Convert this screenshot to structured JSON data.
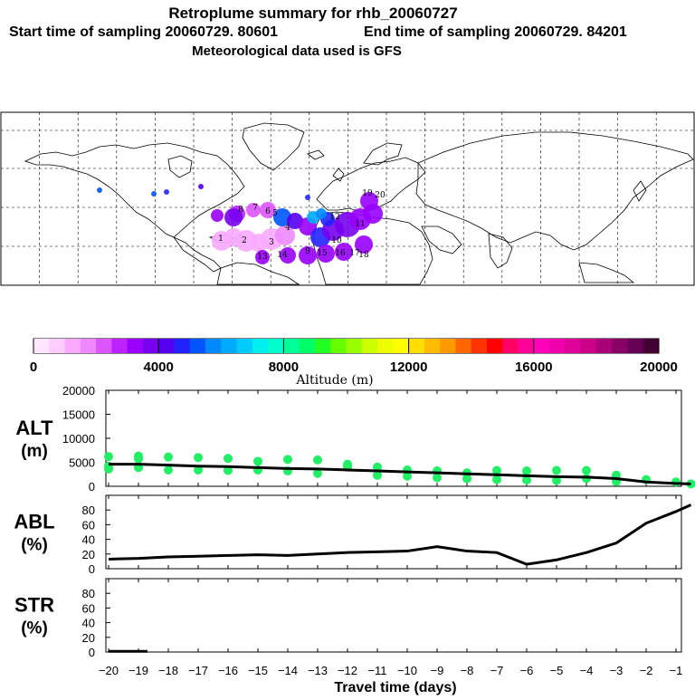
{
  "header": {
    "title": "Retroplume summary for rhb_20060727",
    "start_label": "Start time of sampling 20060729. 80601",
    "end_label": "End time of sampling 20060729. 84201",
    "met_label": "Meteorological data used is GFS"
  },
  "colorbar": {
    "tick_labels": [
      "0",
      "4000",
      "8000",
      "12000",
      "16000",
      "20000"
    ],
    "label": "Altitude (m)",
    "min": 0,
    "max": 20000,
    "colors": [
      "#ffe6ff",
      "#ffccff",
      "#f7aaff",
      "#ee88ff",
      "#dd55ff",
      "#bb22ff",
      "#9900ff",
      "#7700ee",
      "#5500ee",
      "#2222ff",
      "#0055ff",
      "#0088ff",
      "#00aaff",
      "#00ccff",
      "#00eeee",
      "#00ffcc",
      "#00ff99",
      "#00ff66",
      "#22ff22",
      "#66ff00",
      "#99ff00",
      "#ccff00",
      "#eeff00",
      "#ffff00",
      "#ffdd00",
      "#ffbb00",
      "#ff9900",
      "#ff6600",
      "#ff3300",
      "#ff0000",
      "#ff0066",
      "#ff0099",
      "#ff00bb",
      "#ee00aa",
      "#dd0099",
      "#cc0088",
      "#aa0077",
      "#880066",
      "#660055",
      "#440033"
    ]
  },
  "map": {
    "plume_labels": [
      "20",
      "19",
      "18",
      "17",
      "16",
      "15",
      "14",
      "13",
      "12",
      "11",
      "10",
      "9",
      "8",
      "7",
      "6",
      "5",
      "4",
      "3",
      "2",
      "1"
    ]
  },
  "chart_data": [
    {
      "type": "scatter",
      "name": "altitude",
      "title": "ALT (m)",
      "ylabel_top": "ALT",
      "ylabel_bottom": "(m)",
      "ylim": [
        0,
        20000
      ],
      "yticks": [
        0,
        5000,
        10000,
        15000,
        20000
      ],
      "ytick_labels": [
        "0",
        "5000",
        "10000",
        "15000",
        "20000"
      ],
      "line": {
        "x": [
          -20,
          -19,
          -18,
          -17,
          -16,
          -15,
          -14,
          -13,
          -12,
          -11,
          -10,
          -9,
          -8,
          -7,
          -6,
          -5,
          -4,
          -3,
          -2,
          -1,
          -0.5
        ],
        "y": [
          4600,
          4600,
          4400,
          4200,
          4100,
          3900,
          3700,
          3600,
          3400,
          3200,
          3000,
          2800,
          2600,
          2400,
          2200,
          2000,
          1900,
          1600,
          900,
          600,
          500
        ]
      },
      "points": [
        {
          "x": -20,
          "y": 6200
        },
        {
          "x": -20,
          "y": 4200
        },
        {
          "x": -20,
          "y": 3600
        },
        {
          "x": -19,
          "y": 6300
        },
        {
          "x": -19,
          "y": 5700
        },
        {
          "x": -19,
          "y": 3900
        },
        {
          "x": -18,
          "y": 6100
        },
        {
          "x": -18,
          "y": 3400
        },
        {
          "x": -17,
          "y": 6000
        },
        {
          "x": -17,
          "y": 3400
        },
        {
          "x": -16,
          "y": 5800
        },
        {
          "x": -16,
          "y": 3300
        },
        {
          "x": -15,
          "y": 5200
        },
        {
          "x": -15,
          "y": 3400
        },
        {
          "x": -14,
          "y": 5600
        },
        {
          "x": -14,
          "y": 3200
        },
        {
          "x": -13,
          "y": 5500
        },
        {
          "x": -13,
          "y": 2700
        },
        {
          "x": -12,
          "y": 4600
        },
        {
          "x": -12,
          "y": 4000
        },
        {
          "x": -11,
          "y": 4000
        },
        {
          "x": -11,
          "y": 2300
        },
        {
          "x": -10,
          "y": 3400
        },
        {
          "x": -10,
          "y": 2100
        },
        {
          "x": -9,
          "y": 3200
        },
        {
          "x": -9,
          "y": 1800
        },
        {
          "x": -8,
          "y": 2800
        },
        {
          "x": -8,
          "y": 1600
        },
        {
          "x": -7,
          "y": 3300
        },
        {
          "x": -7,
          "y": 1400
        },
        {
          "x": -6,
          "y": 3200
        },
        {
          "x": -6,
          "y": 1300
        },
        {
          "x": -5,
          "y": 3300
        },
        {
          "x": -5,
          "y": 1200
        },
        {
          "x": -4,
          "y": 3300
        },
        {
          "x": -4,
          "y": 1600
        },
        {
          "x": -3,
          "y": 2300
        },
        {
          "x": -3,
          "y": 1000
        },
        {
          "x": -2,
          "y": 1400
        },
        {
          "x": -1,
          "y": 900
        },
        {
          "x": -0.5,
          "y": 500
        }
      ],
      "point_color": "#22ee66"
    },
    {
      "type": "line",
      "name": "abl",
      "title": "ABL (%)",
      "ylabel_top": "ABL",
      "ylabel_bottom": "(%)",
      "ylim": [
        0,
        100
      ],
      "yticks": [
        0,
        20,
        40,
        60,
        80
      ],
      "ytick_labels": [
        "0",
        "20",
        "40",
        "60",
        "80"
      ],
      "x": [
        -20,
        -19,
        -18,
        -17,
        -16,
        -15,
        -14,
        -13,
        -12,
        -11,
        -10,
        -9,
        -8,
        -7,
        -6,
        -5,
        -4,
        -3,
        -2,
        -1,
        -0.5
      ],
      "y": [
        13,
        14,
        16,
        17,
        18,
        19,
        18,
        20,
        22,
        23,
        24,
        30,
        24,
        22,
        6,
        12,
        22,
        35,
        62,
        78,
        87
      ]
    },
    {
      "type": "line",
      "name": "str",
      "title": "STR (%)",
      "ylabel_top": "STR",
      "ylabel_bottom": "(%)",
      "ylim": [
        0,
        100
      ],
      "yticks": [
        0,
        20,
        40,
        60,
        80
      ],
      "ytick_labels": [
        "0",
        "20",
        "40",
        "60",
        "80"
      ],
      "x": [
        -20,
        -19,
        -18.7
      ],
      "y": [
        1,
        1,
        1
      ]
    }
  ],
  "xaxis": {
    "label": "Travel time (days)",
    "ticks": [
      -20,
      -19,
      -18,
      -17,
      -16,
      -15,
      -14,
      -13,
      -12,
      -11,
      -10,
      -9,
      -8,
      -7,
      -6,
      -5,
      -4,
      -3,
      -2,
      -1
    ],
    "tick_labels": [
      "−20",
      "−19",
      "−18",
      "−17",
      "−16",
      "−15",
      "−14",
      "−13",
      "−12",
      "−11",
      "−10",
      "−9",
      "−8",
      "−7",
      "−6",
      "−5",
      "−4",
      "−3",
      "−2",
      "−1"
    ]
  }
}
